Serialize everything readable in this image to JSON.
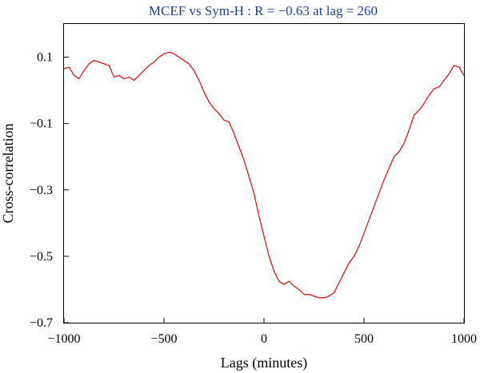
{
  "chart_data": {
    "type": "line",
    "title": "MCEF vs Sym-H : R = −0.63 at lag = 260",
    "xlabel": "Lags (minutes)",
    "ylabel": "Cross-correlation",
    "xlim": [
      -1000,
      1000
    ],
    "ylim": [
      -0.7,
      0.2
    ],
    "x_ticks": [
      -1000,
      -500,
      0,
      500,
      1000
    ],
    "x_tick_labels": [
      "−1000",
      "−500",
      "0",
      "500",
      "1000"
    ],
    "y_ticks": [
      0.1,
      -0.1,
      -0.3,
      -0.5,
      -0.7
    ],
    "y_tick_labels": [
      "0.1",
      "−0.1",
      "−0.3",
      "−0.5",
      "−0.7"
    ],
    "grid": false,
    "legend": "none",
    "series": [
      {
        "color": "#e8141b",
        "x": [
          -1000,
          -975,
          -950,
          -925,
          -900,
          -875,
          -850,
          -825,
          -800,
          -775,
          -750,
          -725,
          -700,
          -675,
          -650,
          -625,
          -600,
          -575,
          -550,
          -525,
          -500,
          -475,
          -450,
          -425,
          -400,
          -375,
          -350,
          -325,
          -300,
          -275,
          -250,
          -225,
          -200,
          -175,
          -150,
          -125,
          -100,
          -75,
          -50,
          -25,
          0,
          25,
          50,
          75,
          100,
          125,
          150,
          175,
          200,
          225,
          250,
          275,
          300,
          325,
          350,
          375,
          400,
          425,
          450,
          475,
          500,
          525,
          550,
          575,
          600,
          625,
          650,
          675,
          700,
          725,
          750,
          775,
          800,
          825,
          850,
          875,
          900,
          925,
          950,
          975,
          1000
        ],
        "y": [
          0.065,
          0.07,
          0.045,
          0.035,
          0.06,
          0.08,
          0.09,
          0.085,
          0.08,
          0.075,
          0.04,
          0.045,
          0.035,
          0.04,
          0.03,
          0.045,
          0.06,
          0.075,
          0.085,
          0.1,
          0.11,
          0.115,
          0.11,
          0.1,
          0.09,
          0.08,
          0.06,
          0.03,
          -0.005,
          -0.035,
          -0.055,
          -0.07,
          -0.09,
          -0.095,
          -0.13,
          -0.17,
          -0.21,
          -0.26,
          -0.31,
          -0.38,
          -0.44,
          -0.5,
          -0.545,
          -0.575,
          -0.585,
          -0.575,
          -0.59,
          -0.6,
          -0.615,
          -0.615,
          -0.62,
          -0.625,
          -0.625,
          -0.62,
          -0.61,
          -0.58,
          -0.55,
          -0.52,
          -0.5,
          -0.47,
          -0.43,
          -0.39,
          -0.35,
          -0.31,
          -0.27,
          -0.235,
          -0.2,
          -0.185,
          -0.16,
          -0.12,
          -0.075,
          -0.06,
          -0.04,
          -0.015,
          0.005,
          0.01,
          0.03,
          0.05,
          0.075,
          0.07,
          0.045
        ]
      }
    ]
  }
}
